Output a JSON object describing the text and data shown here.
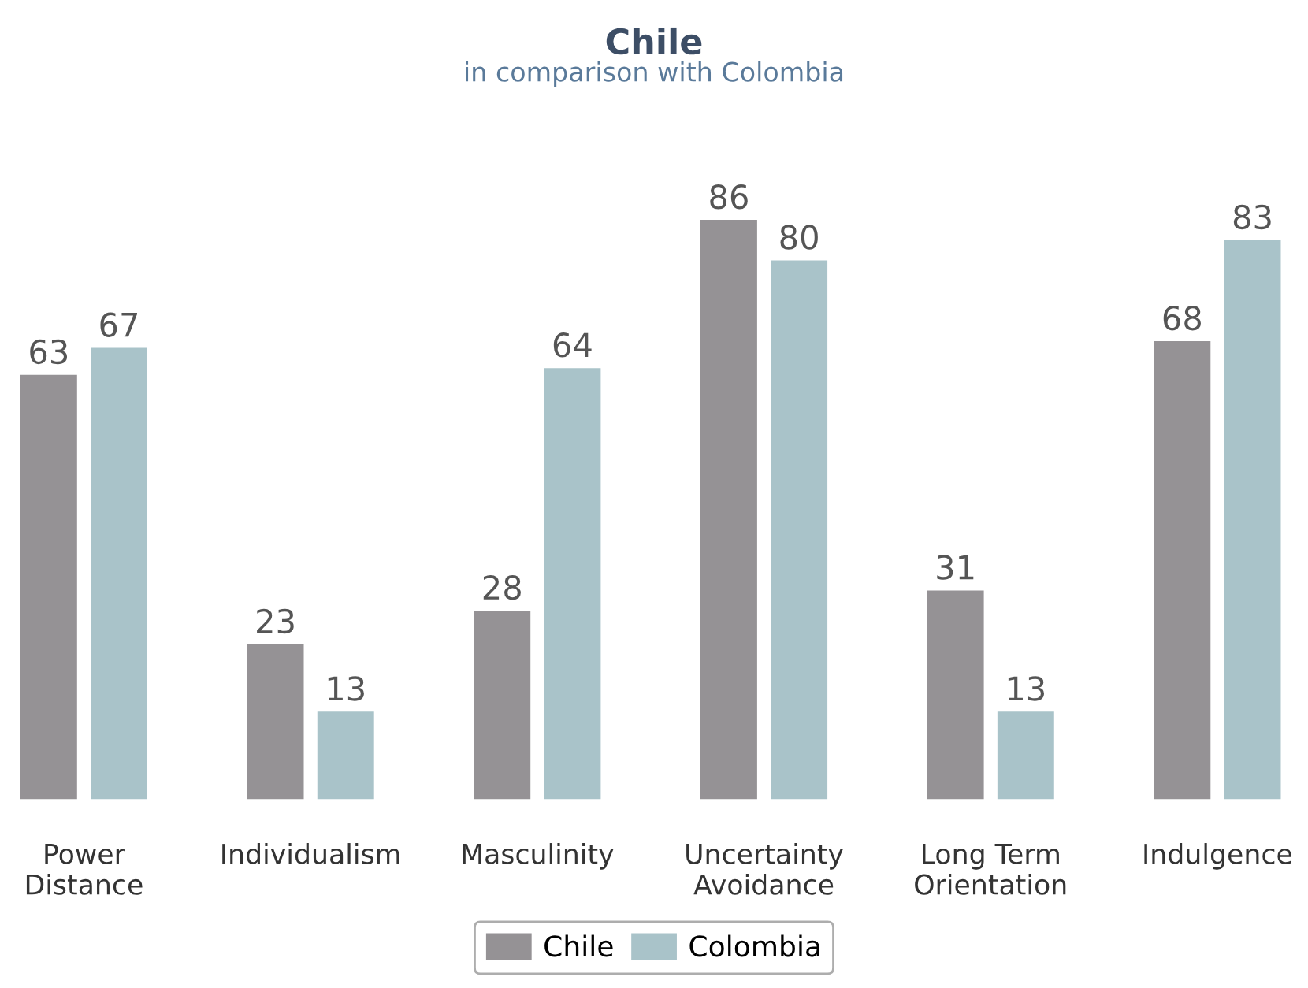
{
  "chart_data": {
    "type": "bar",
    "title": "Chile",
    "subtitle": "in comparison with Colombia",
    "categories": [
      "Power\nDistance",
      "Individualism",
      "Masculinity",
      "Uncertainty\nAvoidance",
      "Long Term\nOrientation",
      "Indulgence"
    ],
    "series": [
      {
        "name": "Chile",
        "color": "#959295",
        "values": [
          63,
          23,
          28,
          86,
          31,
          68
        ]
      },
      {
        "name": "Colombia",
        "color": "#a9c3c9",
        "values": [
          67,
          13,
          64,
          80,
          13,
          83
        ]
      }
    ],
    "data_labels": true,
    "grid": false,
    "legend": "bottom"
  }
}
